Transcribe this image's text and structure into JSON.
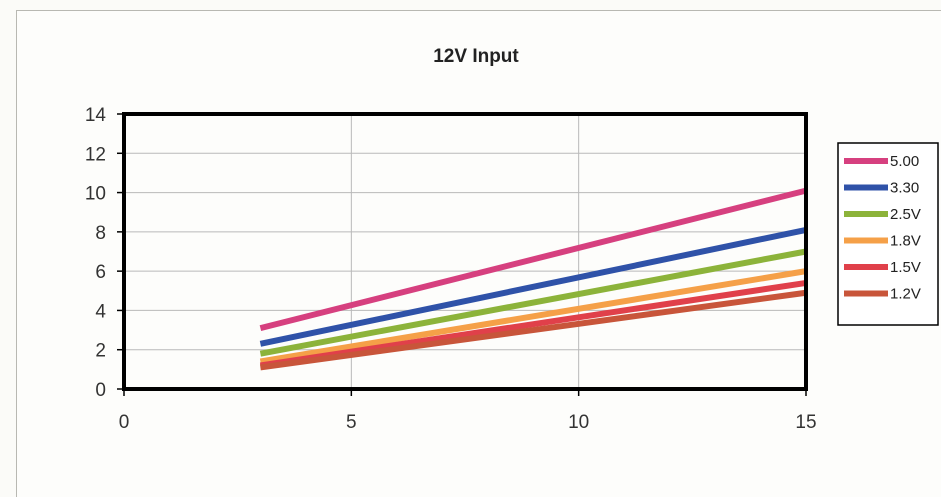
{
  "chart_data": {
    "type": "line",
    "title": "12V Input",
    "xlabel": "",
    "ylabel": "",
    "xlim": [
      0,
      15
    ],
    "ylim": [
      0,
      14
    ],
    "xticks": [
      0,
      5,
      10,
      15
    ],
    "yticks": [
      0,
      2,
      4,
      6,
      8,
      10,
      12,
      14
    ],
    "grid": true,
    "legend_position": "right",
    "series": [
      {
        "name": "5.00",
        "color": "#d6407f",
        "x": [
          3,
          15
        ],
        "y": [
          3.1,
          10.1
        ]
      },
      {
        "name": "3.30",
        "color": "#2f52a8",
        "x": [
          3,
          15
        ],
        "y": [
          2.3,
          8.1
        ]
      },
      {
        "name": "2.5V",
        "color": "#8cb33a",
        "x": [
          3,
          15
        ],
        "y": [
          1.8,
          7.0
        ]
      },
      {
        "name": "1.8V",
        "color": "#f5a048",
        "x": [
          3,
          15
        ],
        "y": [
          1.4,
          6.0
        ]
      },
      {
        "name": "1.5V",
        "color": "#e0404a",
        "x": [
          3,
          15
        ],
        "y": [
          1.2,
          5.4
        ]
      },
      {
        "name": "1.2V",
        "color": "#c8553a",
        "x": [
          3,
          15
        ],
        "y": [
          1.1,
          4.9
        ]
      }
    ]
  }
}
